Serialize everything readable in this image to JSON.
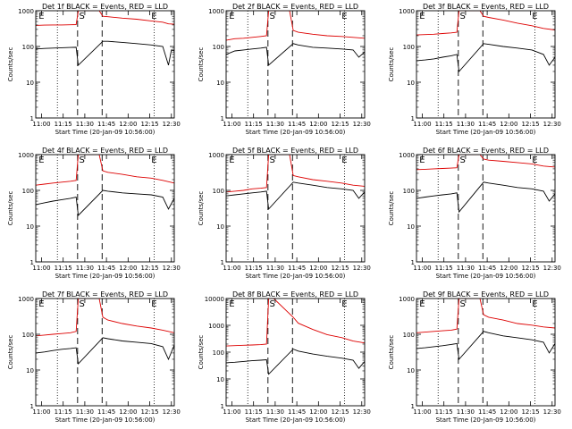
{
  "chart_data": [
    {
      "type": "line",
      "title": "Det 1f BLACK = Events, RED = LLD",
      "xlabel": "Start Time (20-Jan-09 10:56:00)",
      "ylabel": "Counts/sec",
      "ylog": true,
      "ylim": [
        1,
        1000
      ],
      "yticks": [
        "1",
        "10",
        "100",
        "1000"
      ],
      "xticks": [
        "11:00",
        "11:15",
        "11:30",
        "11:45",
        "12:00",
        "12:15",
        "12:30"
      ],
      "xlim": [
        0,
        96
      ],
      "markers": [
        {
          "label": "E",
          "x": 4
        },
        {
          "label": "S",
          "x": 32
        },
        {
          "label": "E",
          "x": 82
        }
      ],
      "vlines_dotted": [
        15,
        82
      ],
      "vlines_dashed": [
        29,
        46
      ],
      "series": [
        {
          "color": "#000000",
          "x": [
            0,
            6,
            12,
            18,
            24,
            28,
            29.5,
            46.5,
            50,
            60,
            70,
            80,
            88,
            92,
            94,
            96
          ],
          "y": [
            85,
            88,
            90,
            92,
            94,
            95,
            30,
            140,
            140,
            130,
            120,
            110,
            100,
            30,
            80,
            75
          ]
        },
        {
          "color": "#dd0000",
          "x": [
            0,
            6,
            12,
            18,
            24,
            28,
            29.5,
            31,
            44,
            46.5,
            50,
            60,
            70,
            80,
            88,
            92,
            96
          ],
          "y": [
            390,
            395,
            400,
            400,
            405,
            410,
            1000,
            1000,
            1000,
            700,
            680,
            620,
            580,
            520,
            480,
            430,
            420
          ]
        }
      ]
    },
    {
      "type": "line",
      "title": "Det 2f BLACK = Events, RED = LLD",
      "xlabel": "Start Time (20-Jan-09 10:56:00)",
      "ylabel": "Counts/sec",
      "ylog": true,
      "ylim": [
        1,
        1000
      ],
      "yticks": [
        "1",
        "10",
        "100",
        "1000"
      ],
      "xticks": [
        "11:00",
        "11:15",
        "11:30",
        "11:45",
        "12:00",
        "12:15",
        "12:30"
      ],
      "xlim": [
        0,
        96
      ],
      "markers": [
        {
          "label": "E",
          "x": 4
        },
        {
          "label": "S",
          "x": 32
        },
        {
          "label": "E",
          "x": 82
        }
      ],
      "vlines_dotted": [
        15,
        82
      ],
      "vlines_dashed": [
        29,
        46
      ],
      "series": [
        {
          "color": "#000000",
          "x": [
            0,
            6,
            12,
            18,
            24,
            28,
            29.5,
            46.5,
            50,
            60,
            70,
            80,
            88,
            92,
            96
          ],
          "y": [
            60,
            75,
            80,
            85,
            90,
            95,
            30,
            120,
            110,
            95,
            90,
            85,
            80,
            50,
            70
          ]
        },
        {
          "color": "#dd0000",
          "x": [
            0,
            6,
            12,
            18,
            24,
            28,
            29.5,
            31,
            44,
            46.5,
            50,
            60,
            70,
            80,
            88,
            96
          ],
          "y": [
            150,
            165,
            170,
            180,
            190,
            200,
            1000,
            1000,
            1000,
            280,
            250,
            220,
            200,
            190,
            180,
            170
          ]
        }
      ]
    },
    {
      "type": "line",
      "title": "Det 3f BLACK = Events, RED = LLD",
      "xlabel": "Start Time (20-Jan-09 10:56:00)",
      "ylabel": "Counts/sec",
      "ylog": true,
      "ylim": [
        1,
        1000
      ],
      "yticks": [
        "1",
        "10",
        "100",
        "1000"
      ],
      "xticks": [
        "11:00",
        "11:15",
        "11:30",
        "11:45",
        "12:00",
        "12:15",
        "12:30"
      ],
      "xlim": [
        0,
        96
      ],
      "markers": [
        {
          "label": "E",
          "x": 4
        },
        {
          "label": "S",
          "x": 32
        },
        {
          "label": "E",
          "x": 82
        }
      ],
      "vlines_dotted": [
        15,
        82
      ],
      "vlines_dashed": [
        29,
        46
      ],
      "series": [
        {
          "color": "#000000",
          "x": [
            0,
            6,
            12,
            18,
            24,
            28,
            29.5,
            46.5,
            50,
            60,
            70,
            80,
            88,
            92,
            96
          ],
          "y": [
            40,
            42,
            45,
            50,
            55,
            60,
            20,
            120,
            115,
            100,
            90,
            80,
            60,
            30,
            50
          ]
        },
        {
          "color": "#dd0000",
          "x": [
            0,
            6,
            12,
            18,
            24,
            28,
            29.5,
            31,
            44,
            46.5,
            50,
            60,
            70,
            80,
            88,
            96
          ],
          "y": [
            210,
            215,
            220,
            230,
            240,
            250,
            1000,
            1000,
            1000,
            700,
            650,
            550,
            450,
            380,
            320,
            290
          ]
        }
      ]
    },
    {
      "type": "line",
      "title": "Det 4f BLACK = Events, RED = LLD",
      "xlabel": "Start Time (20-Jan-09 10:56:00)",
      "ylabel": "Counts/sec",
      "ylog": true,
      "ylim": [
        1,
        1000
      ],
      "yticks": [
        "1",
        "10",
        "100",
        "1000"
      ],
      "xticks": [
        "11:00",
        "11:15",
        "11:30",
        "11:45",
        "12:00",
        "12:15",
        "12:30"
      ],
      "xlim": [
        0,
        96
      ],
      "markers": [
        {
          "label": "E",
          "x": 4
        },
        {
          "label": "S",
          "x": 32
        },
        {
          "label": "E",
          "x": 82
        }
      ],
      "vlines_dotted": [
        15,
        82
      ],
      "vlines_dashed": [
        29,
        46
      ],
      "series": [
        {
          "color": "#000000",
          "x": [
            0,
            6,
            12,
            18,
            24,
            28,
            29.5,
            46.5,
            50,
            60,
            70,
            80,
            88,
            92,
            96
          ],
          "y": [
            40,
            45,
            50,
            55,
            60,
            65,
            20,
            100,
            95,
            85,
            80,
            75,
            65,
            30,
            60
          ]
        },
        {
          "color": "#dd0000",
          "x": [
            0,
            6,
            12,
            18,
            24,
            28,
            29.5,
            31,
            44,
            46.5,
            50,
            60,
            70,
            80,
            88,
            96
          ],
          "y": [
            140,
            150,
            160,
            170,
            180,
            190,
            1000,
            1000,
            1000,
            350,
            320,
            280,
            240,
            220,
            190,
            160
          ]
        }
      ]
    },
    {
      "type": "line",
      "title": "Det 5f BLACK = Events, RED = LLD",
      "xlabel": "Start Time (20-Jan-09 10:56:00)",
      "ylabel": "Counts/sec",
      "ylog": true,
      "ylim": [
        1,
        1000
      ],
      "yticks": [
        "1",
        "10",
        "100",
        "1000"
      ],
      "xticks": [
        "11:00",
        "11:15",
        "11:30",
        "11:45",
        "12:00",
        "12:15",
        "12:30"
      ],
      "xlim": [
        0,
        96
      ],
      "markers": [
        {
          "label": "E",
          "x": 4
        },
        {
          "label": "S",
          "x": 32
        },
        {
          "label": "E",
          "x": 82
        }
      ],
      "vlines_dotted": [
        15,
        82
      ],
      "vlines_dashed": [
        29,
        46
      ],
      "series": [
        {
          "color": "#000000",
          "x": [
            0,
            6,
            12,
            18,
            24,
            28,
            29.5,
            46.5,
            50,
            60,
            70,
            80,
            88,
            92,
            96
          ],
          "y": [
            70,
            75,
            80,
            85,
            90,
            95,
            30,
            170,
            160,
            140,
            120,
            110,
            100,
            60,
            90
          ]
        },
        {
          "color": "#dd0000",
          "x": [
            0,
            6,
            12,
            18,
            24,
            28,
            29.5,
            31,
            44,
            46.5,
            50,
            60,
            70,
            80,
            88,
            96
          ],
          "y": [
            90,
            95,
            100,
            110,
            115,
            120,
            1000,
            1000,
            1000,
            260,
            240,
            200,
            180,
            160,
            140,
            130
          ]
        }
      ]
    },
    {
      "type": "line",
      "title": "Det 6f BLACK = Events, RED = LLD",
      "xlabel": "Start Time (20-Jan-09 10:56:00)",
      "ylabel": "Counts/sec",
      "ylog": true,
      "ylim": [
        1,
        1000
      ],
      "yticks": [
        "1",
        "10",
        "100",
        "1000"
      ],
      "xticks": [
        "11:00",
        "11:15",
        "11:30",
        "11:45",
        "12:00",
        "12:15",
        "12:30"
      ],
      "xlim": [
        0,
        96
      ],
      "markers": [
        {
          "label": "E",
          "x": 4
        },
        {
          "label": "S",
          "x": 32
        },
        {
          "label": "E",
          "x": 82
        }
      ],
      "vlines_dotted": [
        15,
        82
      ],
      "vlines_dashed": [
        29,
        46
      ],
      "series": [
        {
          "color": "#000000",
          "x": [
            0,
            6,
            12,
            18,
            24,
            28,
            29.5,
            46.5,
            50,
            60,
            70,
            80,
            88,
            92,
            96
          ],
          "y": [
            60,
            65,
            70,
            75,
            80,
            85,
            25,
            170,
            160,
            140,
            120,
            110,
            95,
            50,
            80
          ]
        },
        {
          "color": "#dd0000",
          "x": [
            0,
            6,
            12,
            18,
            24,
            28,
            29.5,
            31,
            44,
            46.5,
            50,
            60,
            70,
            80,
            88,
            96
          ],
          "y": [
            380,
            390,
            400,
            410,
            420,
            430,
            1000,
            1000,
            1000,
            750,
            700,
            650,
            600,
            550,
            480,
            450
          ]
        }
      ]
    },
    {
      "type": "line",
      "title": "Det 7f BLACK = Events, RED = LLD",
      "xlabel": "Start Time (20-Jan-09 10:56:00)",
      "ylabel": "Counts/sec",
      "ylog": true,
      "ylim": [
        1,
        1000
      ],
      "yticks": [
        "1",
        "10",
        "100",
        "1000"
      ],
      "xticks": [
        "11:00",
        "11:15",
        "11:30",
        "11:45",
        "12:00",
        "12:15",
        "12:30"
      ],
      "xlim": [
        0,
        96
      ],
      "markers": [
        {
          "label": "E",
          "x": 4
        },
        {
          "label": "S",
          "x": 32
        },
        {
          "label": "E",
          "x": 82
        }
      ],
      "vlines_dotted": [
        15,
        82
      ],
      "vlines_dashed": [
        29,
        46
      ],
      "series": [
        {
          "color": "#000000",
          "x": [
            0,
            6,
            12,
            18,
            24,
            28,
            29.5,
            46.5,
            50,
            60,
            70,
            80,
            88,
            92,
            96
          ],
          "y": [
            30,
            32,
            35,
            38,
            40,
            42,
            15,
            80,
            75,
            65,
            60,
            55,
            45,
            20,
            50
          ]
        },
        {
          "color": "#dd0000",
          "x": [
            0,
            6,
            12,
            18,
            24,
            28,
            29.5,
            31,
            44,
            46.5,
            50,
            60,
            70,
            80,
            88,
            96
          ],
          "y": [
            90,
            95,
            100,
            105,
            110,
            120,
            1000,
            1000,
            1000,
            300,
            250,
            200,
            170,
            150,
            130,
            110
          ]
        }
      ]
    },
    {
      "type": "line",
      "title": "Det 8f BLACK = Events, RED = LLD",
      "xlabel": "Start Time (20-Jan-09 10:56:00)",
      "ylabel": "Counts/sec",
      "ylog": true,
      "ylim": [
        1,
        10000
      ],
      "yticks": [
        "1",
        "10",
        "100",
        "1000",
        "10000"
      ],
      "xticks": [
        "11:00",
        "11:15",
        "11:30",
        "11:45",
        "12:00",
        "12:15",
        "12:30"
      ],
      "xlim": [
        0,
        96
      ],
      "markers": [
        {
          "label": "E",
          "x": 4
        },
        {
          "label": "S",
          "x": 32
        },
        {
          "label": "E",
          "x": 82
        }
      ],
      "vlines_dotted": [
        15,
        82
      ],
      "vlines_dashed": [
        29,
        46
      ],
      "series": [
        {
          "color": "#000000",
          "x": [
            0,
            6,
            12,
            18,
            24,
            28,
            29.5,
            46.5,
            50,
            60,
            70,
            80,
            88,
            92,
            96
          ],
          "y": [
            40,
            42,
            45,
            48,
            50,
            52,
            15,
            130,
            110,
            85,
            70,
            60,
            50,
            25,
            45
          ]
        },
        {
          "color": "#dd0000",
          "x": [
            0,
            6,
            12,
            18,
            24,
            28,
            29.5,
            31,
            33,
            46.5,
            50,
            60,
            70,
            80,
            88,
            96
          ],
          "y": [
            170,
            175,
            180,
            185,
            190,
            200,
            10000,
            10000,
            10000,
            2000,
            1200,
            700,
            450,
            350,
            260,
            220
          ]
        }
      ]
    },
    {
      "type": "line",
      "title": "Det 9f BLACK = Events, RED = LLD",
      "xlabel": "Start Time (20-Jan-09 10:56:00)",
      "ylabel": "Counts/sec",
      "ylog": true,
      "ylim": [
        1,
        1000
      ],
      "yticks": [
        "1",
        "10",
        "100",
        "1000"
      ],
      "xticks": [
        "11:00",
        "11:15",
        "11:30",
        "11:45",
        "12:00",
        "12:15",
        "12:30"
      ],
      "xlim": [
        0,
        96
      ],
      "markers": [
        {
          "label": "E",
          "x": 4
        },
        {
          "label": "S",
          "x": 32
        },
        {
          "label": "E",
          "x": 82
        }
      ],
      "vlines_dotted": [
        15,
        82
      ],
      "vlines_dashed": [
        29,
        46
      ],
      "series": [
        {
          "color": "#000000",
          "x": [
            0,
            6,
            12,
            18,
            24,
            28,
            29.5,
            46.5,
            50,
            60,
            70,
            80,
            88,
            92,
            96
          ],
          "y": [
            40,
            42,
            45,
            48,
            52,
            55,
            20,
            120,
            110,
            90,
            80,
            70,
            60,
            30,
            55
          ]
        },
        {
          "color": "#dd0000",
          "x": [
            0,
            6,
            12,
            18,
            24,
            28,
            29.5,
            31,
            44,
            46.5,
            50,
            60,
            70,
            80,
            88,
            96
          ],
          "y": [
            110,
            115,
            120,
            125,
            130,
            140,
            1000,
            1000,
            1000,
            350,
            300,
            250,
            200,
            180,
            160,
            150
          ]
        }
      ]
    }
  ]
}
